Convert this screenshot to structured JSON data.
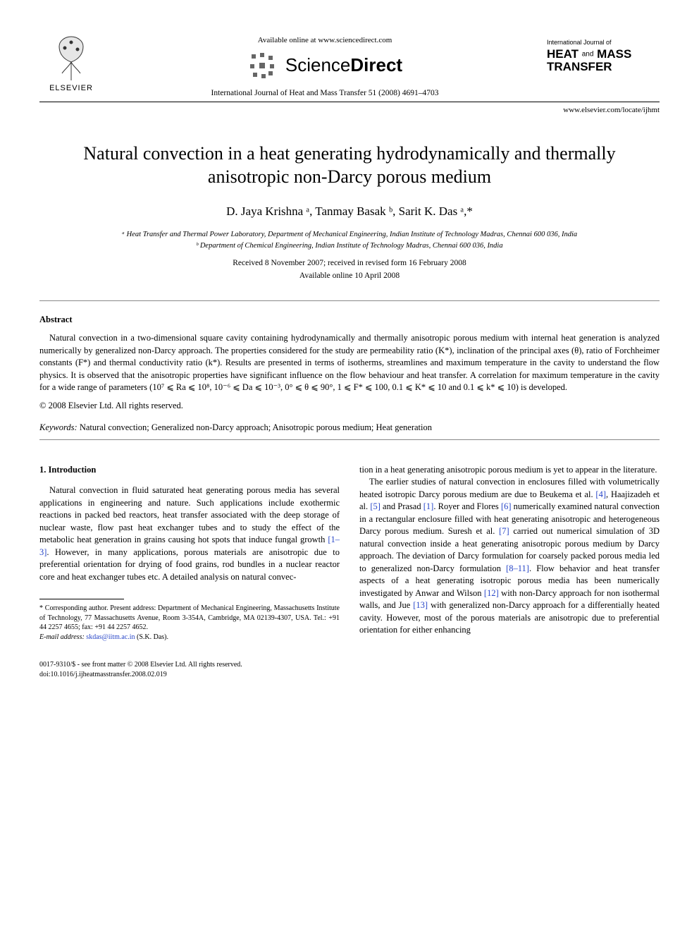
{
  "header": {
    "publisher_label": "ELSEVIER",
    "available_line": "Available online at www.sciencedirect.com",
    "sciencedirect_label_a": "Science",
    "sciencedirect_label_b": "Direct",
    "journal_citation": "International Journal of Heat and Mass Transfer 51 (2008) 4691–4703",
    "journal_logo_small": "International Journal of",
    "journal_logo_line1a": "HEAT",
    "journal_logo_and": "and",
    "journal_logo_line1b": "MASS",
    "journal_logo_line2": "TRANSFER",
    "locate_url": "www.elsevier.com/locate/ijhmt"
  },
  "title": "Natural convection in a heat generating hydrodynamically and thermally anisotropic non-Darcy porous medium",
  "authors": "D. Jaya Krishna ᵃ, Tanmay Basak ᵇ, Sarit K. Das ᵃ,*",
  "affiliations": {
    "a": "ᵃ Heat Transfer and Thermal Power Laboratory, Department of Mechanical Engineering, Indian Institute of Technology Madras, Chennai 600 036, India",
    "b": "ᵇ Department of Chemical Engineering, Indian Institute of Technology Madras, Chennai 600 036, India"
  },
  "dates": {
    "received": "Received 8 November 2007; received in revised form 16 February 2008",
    "online": "Available online 10 April 2008"
  },
  "abstract": {
    "heading": "Abstract",
    "body": "Natural convection in a two-dimensional square cavity containing hydrodynamically and thermally anisotropic porous medium with internal heat generation is analyzed numerically by generalized non-Darcy approach. The properties considered for the study are permeability ratio (K*), inclination of the principal axes (θ), ratio of Forchheimer constants (F*) and thermal conductivity ratio (k*). Results are presented in terms of isotherms, streamlines and maximum temperature in the cavity to understand the flow physics. It is observed that the anisotropic properties have significant influence on the flow behaviour and heat transfer. A correlation for maximum temperature in the cavity for a wide range of parameters (10⁷ ⩽ Ra ⩽ 10⁸, 10⁻⁶ ⩽ Da ⩽ 10⁻³, 0° ⩽ θ ⩽ 90°, 1 ⩽ F* ⩽ 100, 0.1 ⩽ K* ⩽ 10 and 0.1 ⩽ k* ⩽ 10) is developed.",
    "copyright": "© 2008 Elsevier Ltd. All rights reserved."
  },
  "keywords": {
    "label": "Keywords:",
    "body": " Natural convection; Generalized non-Darcy approach; Anisotropic porous medium; Heat generation"
  },
  "section_heading": "1. Introduction",
  "col_left": {
    "p1": "Natural convection in fluid saturated heat generating porous media has several applications in engineering and nature. Such applications include exothermic reactions in packed bed reactors, heat transfer associated with the deep storage of nuclear waste, flow past heat exchanger tubes and to study the effect of the metabolic heat generation in grains causing hot spots that induce fungal growth [1–3]. However, in many applications, porous materials are anisotropic due to preferential orientation for drying of food grains, rod bundles in a nuclear reactor core and heat exchanger tubes etc. A detailed analysis on natural convec-"
  },
  "col_right": {
    "p1": "tion in a heat generating anisotropic porous medium is yet to appear in the literature.",
    "p2": "The earlier studies of natural convection in enclosures filled with volumetrically heated isotropic Darcy porous medium are due to Beukema et al. [4], Haajizadeh et al. [5] and Prasad [1]. Royer and Flores [6] numerically examined natural convection in a rectangular enclosure filled with heat generating anisotropic and heterogeneous Darcy porous medium. Suresh et al. [7] carried out numerical simulation of 3D natural convection inside a heat generating anisotropic porous medium by Darcy approach. The deviation of Darcy formulation for coarsely packed porous media led to generalized non-Darcy formulation [8–11]. Flow behavior and heat transfer aspects of a heat generating isotropic porous media has been numerically investigated by Anwar and Wilson [12] with non-Darcy approach for non isothermal walls, and Jue [13] with generalized non-Darcy approach for a differentially heated cavity. However, most of the porous materials are anisotropic due to preferential orientation for either enhancing"
  },
  "footnote": {
    "corr": "* Corresponding author. Present address: Department of Mechanical Engineering, Massachusetts Institute of Technology, 77 Massachusetts Avenue, Room 3-354A, Cambridge, MA 02139-4307, USA. Tel.: +91 44 2257 4655; fax: +91 44 2257 4652.",
    "email_label": "E-mail address:",
    "email": "skdas@iitm.ac.in",
    "email_who": "(S.K. Das)."
  },
  "footer": {
    "issn": "0017-9310/$ - see front matter © 2008 Elsevier Ltd. All rights reserved.",
    "doi": "doi:10.1016/j.ijheatmasstransfer.2008.02.019"
  },
  "colors": {
    "link": "#2846c8",
    "text": "#000000",
    "bg": "#ffffff"
  }
}
